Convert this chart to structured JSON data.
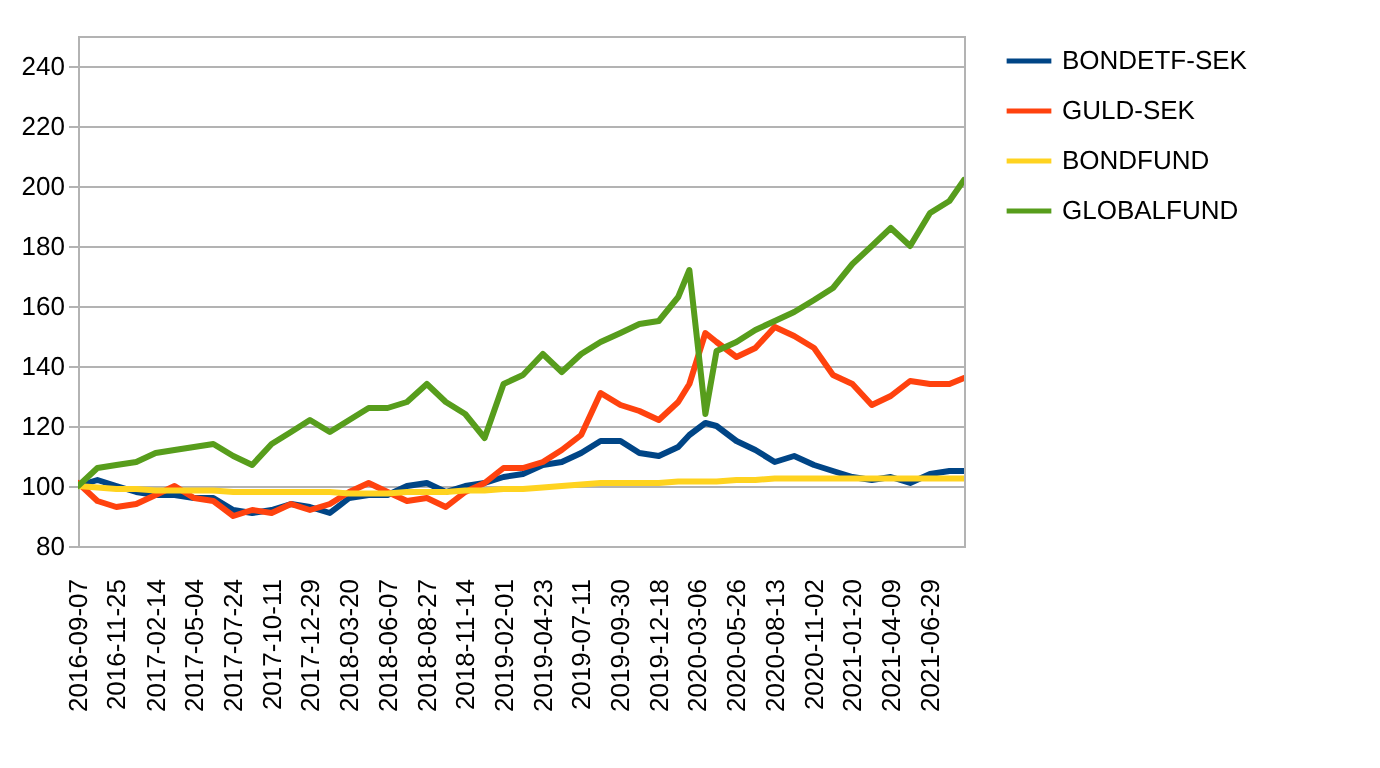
{
  "chart_data": {
    "type": "line",
    "x": [
      "2016-09-07",
      "2016-10-17",
      "2016-11-25",
      "2017-01-05",
      "2017-02-14",
      "2017-03-25",
      "2017-05-04",
      "2017-06-13",
      "2017-07-24",
      "2017-09-01",
      "2017-10-11",
      "2017-11-20",
      "2017-12-29",
      "2018-02-08",
      "2018-03-20",
      "2018-04-29",
      "2018-06-07",
      "2018-07-17",
      "2018-08-27",
      "2018-10-05",
      "2018-11-14",
      "2018-12-24",
      "2019-02-01",
      "2019-03-13",
      "2019-04-23",
      "2019-06-01",
      "2019-07-11",
      "2019-08-20",
      "2019-09-30",
      "2019-11-08",
      "2019-12-18",
      "2020-01-27",
      "2020-02-19",
      "2020-03-23",
      "2020-04-15",
      "2020-05-26",
      "2020-07-04",
      "2020-08-13",
      "2020-09-22",
      "2020-11-02",
      "2020-12-11",
      "2021-01-20",
      "2021-03-01",
      "2021-04-09",
      "2021-05-19",
      "2021-06-29",
      "2021-08-08",
      "2021-09-07"
    ],
    "series": [
      {
        "name": "BONDETF-SEK",
        "color": "#004586",
        "values": [
          100,
          102,
          100,
          98,
          97,
          97,
          96,
          96,
          92,
          91,
          92,
          94,
          93,
          91,
          96,
          97,
          97,
          100,
          101,
          98,
          100,
          101,
          103,
          104,
          107,
          108,
          111,
          115,
          115,
          111,
          110,
          113,
          117,
          121,
          120,
          115,
          112,
          108,
          110,
          107,
          105,
          103,
          102,
          103,
          101,
          104,
          105,
          105
        ]
      },
      {
        "name": "GULD-SEK",
        "color": "#ff420e",
        "values": [
          101,
          95,
          93,
          94,
          97,
          100,
          96,
          95,
          90,
          92,
          91,
          94,
          92,
          94,
          98,
          101,
          98,
          95,
          96,
          93,
          98,
          101,
          106,
          106,
          108,
          112,
          117,
          131,
          127,
          125,
          122,
          128,
          134,
          151,
          148,
          143,
          146,
          153,
          150,
          146,
          137,
          134,
          127,
          130,
          135,
          134,
          134,
          136
        ]
      },
      {
        "name": "BONDFUND",
        "color": "#ffd320",
        "values": [
          100,
          99.5,
          99,
          99,
          98.5,
          98.5,
          98.5,
          98.5,
          98,
          98,
          98,
          98,
          98,
          98,
          97.5,
          97.5,
          97.5,
          98,
          98,
          98,
          98.5,
          98.5,
          99,
          99,
          99.5,
          100,
          100.5,
          101,
          101,
          101,
          101,
          101.5,
          101.5,
          101.5,
          101.5,
          102,
          102,
          102.5,
          102.5,
          102.5,
          102.5,
          102.5,
          102.5,
          102.5,
          102.5,
          102.5,
          102.5,
          102.5
        ]
      },
      {
        "name": "GLOBALFUND",
        "color": "#579d1c",
        "values": [
          100,
          106,
          107,
          108,
          111,
          112,
          113,
          114,
          110,
          107,
          114,
          118,
          122,
          118,
          122,
          126,
          126,
          128,
          134,
          128,
          124,
          116,
          134,
          137,
          144,
          138,
          144,
          148,
          151,
          154,
          155,
          163,
          172,
          124,
          145,
          148,
          152,
          155,
          158,
          162,
          166,
          174,
          180,
          186,
          180,
          191,
          195,
          202
        ]
      }
    ],
    "xlim": [
      "2016-09-07",
      "2021-09-07"
    ],
    "xticks": [
      "2016-09-07",
      "2016-11-25",
      "2017-02-14",
      "2017-05-04",
      "2017-07-24",
      "2017-10-11",
      "2017-12-29",
      "2018-03-20",
      "2018-06-07",
      "2018-08-27",
      "2018-11-14",
      "2019-02-01",
      "2019-04-23",
      "2019-07-11",
      "2019-09-30",
      "2019-12-18",
      "2020-03-06",
      "2020-05-26",
      "2020-08-13",
      "2020-11-02",
      "2021-01-20",
      "2021-04-09",
      "2021-06-29"
    ],
    "ylim": [
      80,
      250
    ],
    "yticks": [
      80,
      100,
      120,
      140,
      160,
      180,
      200,
      220,
      240
    ],
    "grid": "y",
    "legend": "right"
  }
}
